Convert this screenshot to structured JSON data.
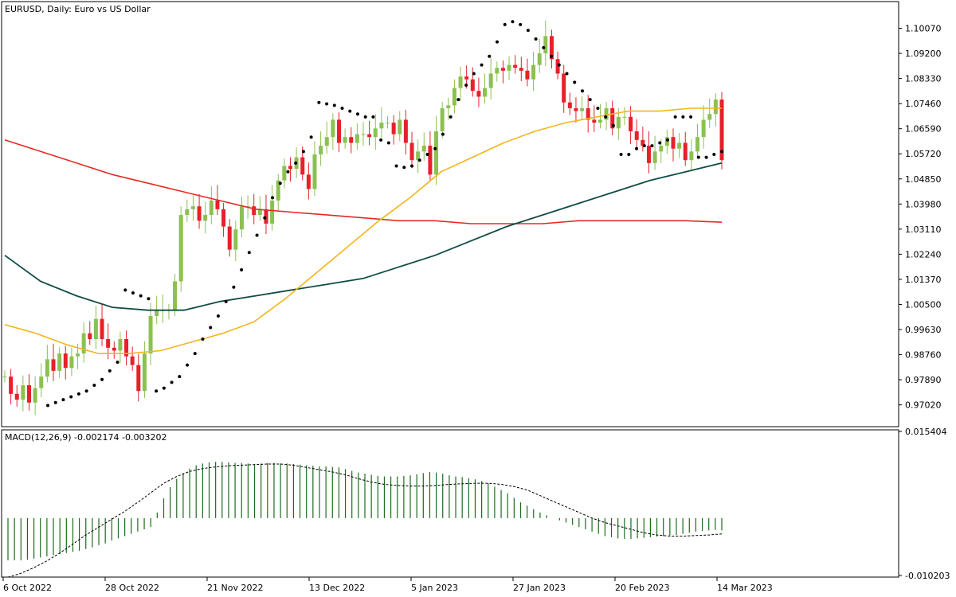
{
  "header": {
    "symbol_title": "EURUSD, Daily:  Euro vs US Dollar"
  },
  "macd_panel": {
    "label": "MACD(12,26,9) -0.002174 -0.003202"
  },
  "colors": {
    "bull": "#8cc152",
    "bear": "#e8202a",
    "ma_fast": "#f2b51c",
    "ma_mid": "#0f4c45",
    "ma_slow": "#e32b24",
    "psar": "#000000",
    "macd_hist": "#1e6b1e",
    "macd_signal": "#000000"
  },
  "chart_data": [
    {
      "type": "candlestick",
      "title": "EURUSD, Daily:  Euro vs US Dollar",
      "price_ticks": [
        "1.10070",
        "1.09200",
        "1.08330",
        "1.07460",
        "1.06590",
        "1.05720",
        "1.04850",
        "1.03980",
        "1.03110",
        "1.02240",
        "1.01370",
        "1.00500",
        "0.99630",
        "0.98760",
        "0.97890",
        "0.97020"
      ],
      "ylim": [
        0.9632,
        1.1094
      ],
      "date_ticks": [
        "6 Oct 2022",
        "28 Oct 2022",
        "21 Nov 2022",
        "13 Dec 2022",
        "5 Jan 2023",
        "27 Jan 2023",
        "20 Feb 2023",
        "14 Mar 2023"
      ],
      "start_close": 0.98,
      "closes": [
        0.98,
        0.974,
        0.972,
        0.977,
        0.971,
        0.976,
        0.98,
        0.986,
        0.982,
        0.988,
        0.983,
        0.987,
        0.988,
        0.995,
        0.993,
        1.0,
        0.993,
        0.99,
        0.989,
        0.993,
        0.987,
        0.984,
        0.975,
        0.988,
        1.001,
        1.003,
        1.003,
        1.003,
        1.013,
        1.036,
        1.038,
        1.039,
        1.034,
        1.036,
        1.041,
        1.038,
        1.032,
        1.024,
        1.031,
        1.039,
        1.039,
        1.036,
        1.038,
        1.033,
        1.041,
        1.048,
        1.053,
        1.052,
        1.056,
        1.05,
        1.045,
        1.057,
        1.06,
        1.063,
        1.069,
        1.061,
        1.063,
        1.061,
        1.064,
        1.064,
        1.063,
        1.066,
        1.068,
        1.068,
        1.064,
        1.069,
        1.061,
        1.055,
        1.058,
        1.06,
        1.05,
        1.065,
        1.073,
        1.074,
        1.08,
        1.084,
        1.083,
        1.079,
        1.077,
        1.08,
        1.085,
        1.087,
        1.086,
        1.088,
        1.087,
        1.086,
        1.083,
        1.088,
        1.092,
        1.098,
        1.09,
        1.085,
        1.075,
        1.073,
        1.072,
        1.073,
        1.069,
        1.068,
        1.069,
        1.073,
        1.066,
        1.07,
        1.07,
        1.065,
        1.062,
        1.06,
        1.054,
        1.058,
        1.06,
        1.063,
        1.059,
        1.061,
        1.055,
        1.058,
        1.063,
        1.069,
        1.071,
        1.076,
        1.055
      ],
      "series": [
        {
          "name": "MA fast",
          "values": [
            0.998,
            0.995,
            0.991,
            0.988,
            0.988,
            0.989,
            0.992,
            0.995,
            0.999,
            1.007,
            1.016,
            1.025,
            1.034,
            1.042,
            1.051,
            1.056,
            1.061,
            1.065,
            1.068,
            1.07,
            1.072,
            1.072,
            1.073,
            1.073
          ]
        },
        {
          "name": "MA mid",
          "values": [
            1.022,
            1.013,
            1.008,
            1.004,
            1.003,
            1.003,
            1.006,
            1.008,
            1.01,
            1.012,
            1.014,
            1.018,
            1.022,
            1.027,
            1.032,
            1.036,
            1.04,
            1.044,
            1.048,
            1.051,
            1.054
          ]
        },
        {
          "name": "MA slow",
          "values": [
            1.062,
            1.058,
            1.054,
            1.05,
            1.047,
            1.044,
            1.041,
            1.038,
            1.037,
            1.036,
            1.035,
            1.034,
            1.034,
            1.033,
            1.033,
            1.033,
            1.034,
            1.034,
            1.034,
            1.034,
            1.0335
          ]
        },
        {
          "name": "Parabolic SAR",
          "values": [
            0.97,
            0.971,
            0.972,
            0.973,
            0.974,
            0.975,
            0.977,
            0.979,
            0.982,
            0.985,
            1.01,
            1.009,
            1.008,
            1.007,
            0.975,
            0.976,
            0.978,
            0.98,
            0.984,
            0.988,
            0.993,
            0.997,
            1.001,
            1.006,
            1.011,
            1.017,
            1.023,
            1.029,
            1.035,
            1.042,
            1.047,
            1.051,
            1.054,
            1.058,
            1.063,
            1.075,
            1.0745,
            1.074,
            1.073,
            1.072,
            1.071,
            1.07,
            1.07,
            1.062,
            1.061,
            1.053,
            1.0525,
            1.053,
            1.055,
            1.057,
            1.059,
            1.064,
            1.07,
            1.076,
            1.081,
            1.085,
            1.088,
            1.091,
            1.096,
            1.102,
            1.103,
            1.102,
            1.1,
            1.097,
            1.094,
            1.091,
            1.088,
            1.085,
            1.082,
            1.079,
            1.076,
            1.073,
            1.07,
            1.067,
            1.057,
            1.057,
            1.059,
            1.06,
            1.06,
            1.061,
            1.062,
            1.07,
            1.07,
            1.07,
            1.056,
            1.056,
            1.057,
            1.058
          ]
        }
      ]
    },
    {
      "type": "bar",
      "title": "MACD(12,26,9) -0.002174 -0.003202",
      "value_ticks": [
        "0.015404",
        "-0.010203"
      ],
      "ylim": [
        -0.010203,
        0.015404
      ],
      "series": [
        {
          "name": "MACD",
          "values": [
            -0.0075,
            -0.0075,
            -0.0075,
            -0.0074,
            -0.0072,
            -0.007,
            -0.0068,
            -0.0066,
            -0.0064,
            -0.0062,
            -0.006,
            -0.0058,
            -0.0055,
            -0.0052,
            -0.0048,
            -0.0045,
            -0.004,
            -0.0036,
            -0.0032,
            -0.0028,
            -0.0024,
            -0.002,
            -0.0016,
            0.001,
            0.0035,
            0.0055,
            0.007,
            0.008,
            0.0088,
            0.0094,
            0.0097,
            0.0099,
            0.01,
            0.01,
            0.0099,
            0.0098,
            0.0098,
            0.0097,
            0.0096,
            0.0097,
            0.0098,
            0.0098,
            0.0097,
            0.0097,
            0.0096,
            0.0095,
            0.0094,
            0.0093,
            0.0092,
            0.0092,
            0.0091,
            0.009,
            0.0087,
            0.0084,
            0.0081,
            0.0079,
            0.0077,
            0.0075,
            0.0074,
            0.0074,
            0.0074,
            0.0075,
            0.0076,
            0.0078,
            0.008,
            0.0082,
            0.0081,
            0.0079,
            0.0076,
            0.0074,
            0.0073,
            0.0071,
            0.0069,
            0.0066,
            0.0062,
            0.0056,
            0.005,
            0.0044,
            0.0036,
            0.0028,
            0.0022,
            0.0016,
            0.001,
            0.0005,
            0.0,
            -0.0004,
            -0.0008,
            -0.0012,
            -0.0016,
            -0.002,
            -0.0024,
            -0.0028,
            -0.0032,
            -0.0034,
            -0.0036,
            -0.0037,
            -0.0037,
            -0.0036,
            -0.0035,
            -0.0034,
            -0.0033,
            -0.0032,
            -0.0031,
            -0.003,
            -0.0028,
            -0.0026,
            -0.0024,
            -0.0023,
            -0.0022,
            -0.0021,
            -0.0022
          ]
        },
        {
          "name": "Signal",
          "values": [
            -0.0105,
            -0.0098,
            -0.0088,
            -0.0076,
            -0.0062,
            -0.0046,
            -0.003,
            -0.0016,
            -0.0002,
            0.0012,
            0.0028,
            0.0045,
            0.0062,
            0.0074,
            0.0083,
            0.0088,
            0.0091,
            0.0093,
            0.0094,
            0.0095,
            0.0096,
            0.0096,
            0.0094,
            0.009,
            0.0086,
            0.0082,
            0.0077,
            0.007,
            0.0064,
            0.006,
            0.0058,
            0.0057,
            0.0057,
            0.0058,
            0.006,
            0.0061,
            0.0062,
            0.0062,
            0.006,
            0.0056,
            0.005,
            0.004,
            0.003,
            0.002,
            0.001,
            0.0,
            -0.0008,
            -0.0014,
            -0.002,
            -0.0026,
            -0.003,
            -0.0032,
            -0.0032,
            -0.0031,
            -0.003,
            -0.0028
          ]
        }
      ]
    }
  ]
}
